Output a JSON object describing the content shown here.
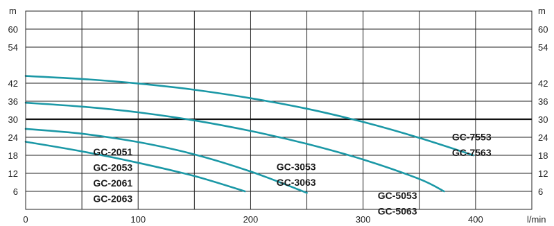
{
  "chart_data": {
    "type": "line",
    "title": "",
    "xlabel": "",
    "ylabel": "",
    "x_unit": "l/min",
    "y_unit_left": "m",
    "y_unit_right": "m",
    "xlim": [
      0,
      450
    ],
    "ylim": [
      0,
      66
    ],
    "x_ticks": [
      0,
      100,
      200,
      300,
      400
    ],
    "x_tick_labels": [
      "0",
      "100",
      "200",
      "300",
      "400"
    ],
    "x_grid": [
      0,
      50,
      100,
      150,
      200,
      250,
      300,
      350,
      400,
      450
    ],
    "y_ticks": [
      6,
      12,
      18,
      24,
      30,
      36,
      42,
      54,
      60
    ],
    "y_tick_labels": [
      "6",
      "12",
      "18",
      "24",
      "30",
      "36",
      "42",
      "54",
      "60"
    ],
    "grid": true,
    "reference_line_y": 30,
    "line_color": "#1b98a6",
    "series": [
      {
        "labels": [
          "GC-2051",
          "GC-2053",
          "GC-2061",
          "GC-2063"
        ],
        "x": [
          0,
          50,
          100,
          150,
          195
        ],
        "y": [
          22.5,
          19.3,
          15.5,
          11.1,
          6
        ]
      },
      {
        "labels": [],
        "x": [
          0,
          50,
          100,
          150,
          200,
          250
        ],
        "y": [
          26.8,
          25.2,
          22.4,
          18.3,
          12.6,
          5.5
        ]
      },
      {
        "labels": [
          "GC-3053",
          "GC-3063"
        ],
        "x": [
          0,
          50,
          100,
          150,
          200,
          250,
          300,
          350,
          372
        ],
        "y": [
          35.5,
          34.2,
          32.3,
          29.6,
          26.1,
          21.8,
          16.6,
          10.1,
          6
        ]
      },
      {
        "labels": [
          "GC-5053",
          "GC-5063"
        ],
        "x": [
          0,
          50,
          100,
          150,
          200,
          250,
          300,
          350,
          398
        ],
        "y": [
          44.4,
          43.4,
          41.9,
          39.8,
          37.0,
          33.5,
          29.1,
          23.8,
          18
        ]
      }
    ],
    "annotations": [
      {
        "lines": [
          "GC-2051",
          "GC-2053",
          "GC-2061",
          "GC-2063"
        ],
        "x": 60,
        "y": 18
      },
      {
        "lines": [
          "GC-3053",
          "GC-3063"
        ],
        "x": 223,
        "y": 13
      },
      {
        "lines": [
          "GC-5053",
          "GC-5063"
        ],
        "x": 313,
        "y": 3.5
      },
      {
        "lines": [
          "GC-7553",
          "GC-7563"
        ],
        "x": 379,
        "y": 23
      }
    ]
  }
}
